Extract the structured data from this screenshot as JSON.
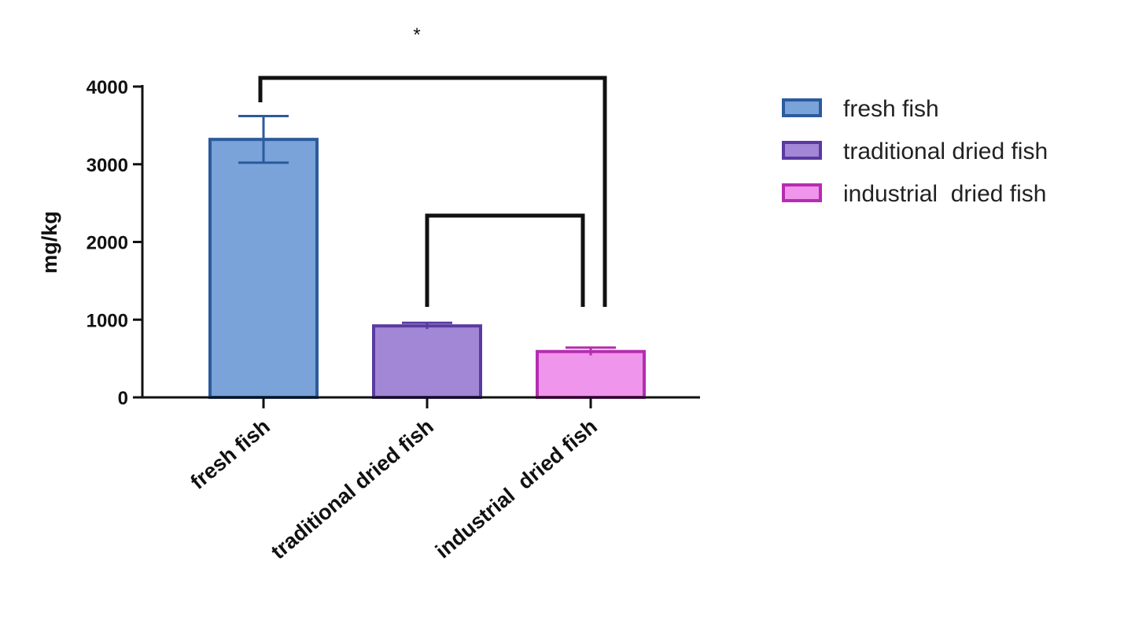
{
  "chart_data": {
    "type": "bar",
    "categories": [
      "fresh fish",
      "traditional dried fish",
      "industrial  dried fish"
    ],
    "values": [
      3320,
      920,
      590
    ],
    "error": [
      300,
      40,
      50
    ],
    "ylabel": "mg/kg",
    "xlabel": "",
    "ylim": [
      0,
      4000
    ],
    "yticks": [
      0,
      1000,
      2000,
      3000,
      4000
    ],
    "grid": false,
    "legend_position": "right",
    "colors": {
      "fill": [
        "#79a3d9",
        "#a287d6",
        "#ef95eb"
      ],
      "stroke": [
        "#2d5a9e",
        "#5a3aa0",
        "#b52db0"
      ]
    },
    "legend": [
      {
        "label": "fresh fish"
      },
      {
        "label": "traditional dried fish"
      },
      {
        "label": "industrial  dried fish"
      }
    ],
    "significance": [
      {
        "from": 0,
        "to": 2,
        "label": "*"
      },
      {
        "from": 1,
        "to": 2,
        "label": ""
      }
    ]
  }
}
